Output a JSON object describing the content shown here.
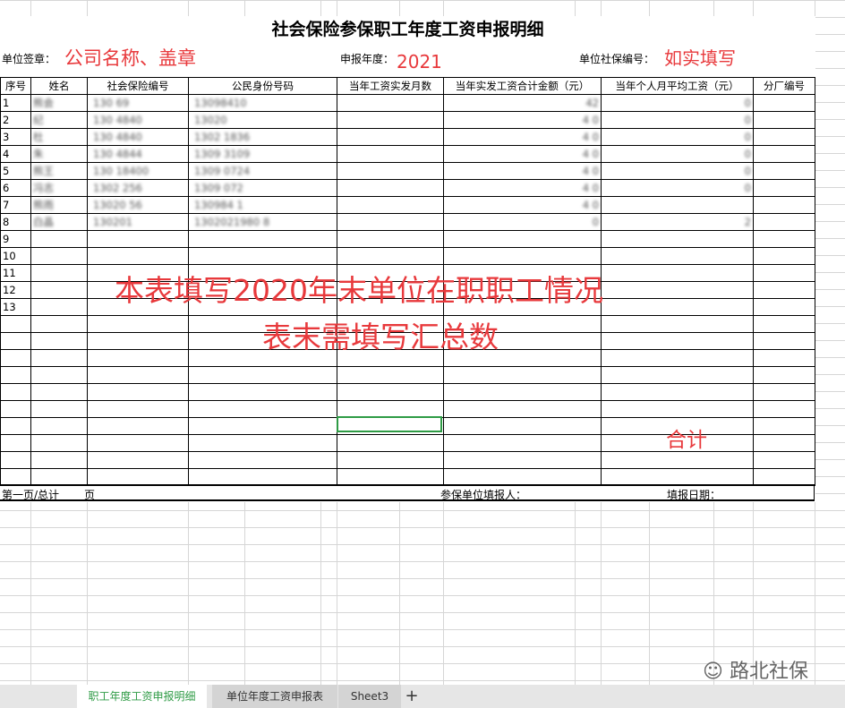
{
  "title": "社会保险参保职工年度工资申报明细",
  "info": {
    "unit_sign_label": "单位签章：",
    "unit_sign_value": "公司名称、盖章",
    "year_label": "申报年度：",
    "year_value": "2021",
    "unit_no_label": "单位社保编号：",
    "unit_no_value": "如实填写"
  },
  "columns": [
    "序号",
    "姓名",
    "社会保险编号",
    "公民身份号码",
    "当年工资实发月数",
    "当年实发工资合计金额（元）",
    "当年个人月平均工资（元）",
    "分厂编号"
  ],
  "rows": [
    [
      "1",
      "熊会",
      "130   69",
      "13098410",
      "",
      "42",
      "0",
      ""
    ],
    [
      "2",
      "纪",
      "130  4840",
      "13020",
      "",
      "4   0",
      "0",
      ""
    ],
    [
      "3",
      "杜",
      "130  4840",
      "1302   1836",
      "",
      "4   0",
      "0",
      ""
    ],
    [
      "4",
      "朱",
      "130  4844",
      "1309   3109",
      "",
      "4   0",
      "0",
      ""
    ],
    [
      "5",
      "熊王",
      "130  18400",
      "1309   0724",
      "",
      "4   0",
      "0",
      ""
    ],
    [
      "6",
      "冯志",
      "1302  256",
      "1309   072",
      "",
      "4   0",
      "0",
      ""
    ],
    [
      "7",
      "熊雨",
      "13020  56",
      "130984   1",
      "",
      "4   0",
      "",
      ""
    ],
    [
      "8",
      "白晶",
      "130201",
      "1302021980   8",
      "",
      "0",
      "2",
      ""
    ],
    [
      "9",
      "",
      "",
      "",
      "",
      "",
      "",
      ""
    ],
    [
      "10",
      "",
      "",
      "",
      "",
      "",
      "",
      ""
    ],
    [
      "11",
      "",
      "",
      "",
      "",
      "",
      "",
      ""
    ],
    [
      "12",
      "",
      "",
      "",
      "",
      "",
      "",
      ""
    ],
    [
      "13",
      "",
      "",
      "",
      "",
      "",
      "",
      ""
    ],
    [
      "",
      "",
      "",
      "",
      "",
      "",
      "",
      ""
    ],
    [
      "",
      "",
      "",
      "",
      "",
      "",
      "",
      ""
    ],
    [
      "",
      "",
      "",
      "",
      "",
      "",
      "",
      ""
    ],
    [
      "",
      "",
      "",
      "",
      "",
      "",
      "",
      ""
    ],
    [
      "",
      "",
      "",
      "",
      "",
      "",
      "",
      ""
    ],
    [
      "",
      "",
      "",
      "",
      "",
      "",
      "",
      ""
    ],
    [
      "",
      "",
      "",
      "",
      "",
      "",
      "",
      ""
    ],
    [
      "",
      "",
      "",
      "",
      "",
      "",
      "",
      ""
    ],
    [
      "",
      "",
      "",
      "",
      "",
      "",
      "",
      ""
    ],
    [
      "",
      "",
      "",
      "",
      "",
      "",
      "",
      ""
    ]
  ],
  "footer": {
    "page": "第一页/总计",
    "page_unit": "页",
    "filler": "参保单位填报人：",
    "date": "填报日期："
  },
  "annotations": {
    "line1": "本表填写2020年末单位在职职工情况",
    "line2": "表末需填写汇总数",
    "total": "合计"
  },
  "tabs": [
    {
      "label": "职工年度工资申报明细",
      "active": true
    },
    {
      "label": "单位年度工资申报表"
    },
    {
      "label": "Sheet3"
    }
  ],
  "add_tab": "+",
  "watermark": "路北社保",
  "colors": {
    "annotation": "#e8393c",
    "accent": "#2e9b45"
  }
}
